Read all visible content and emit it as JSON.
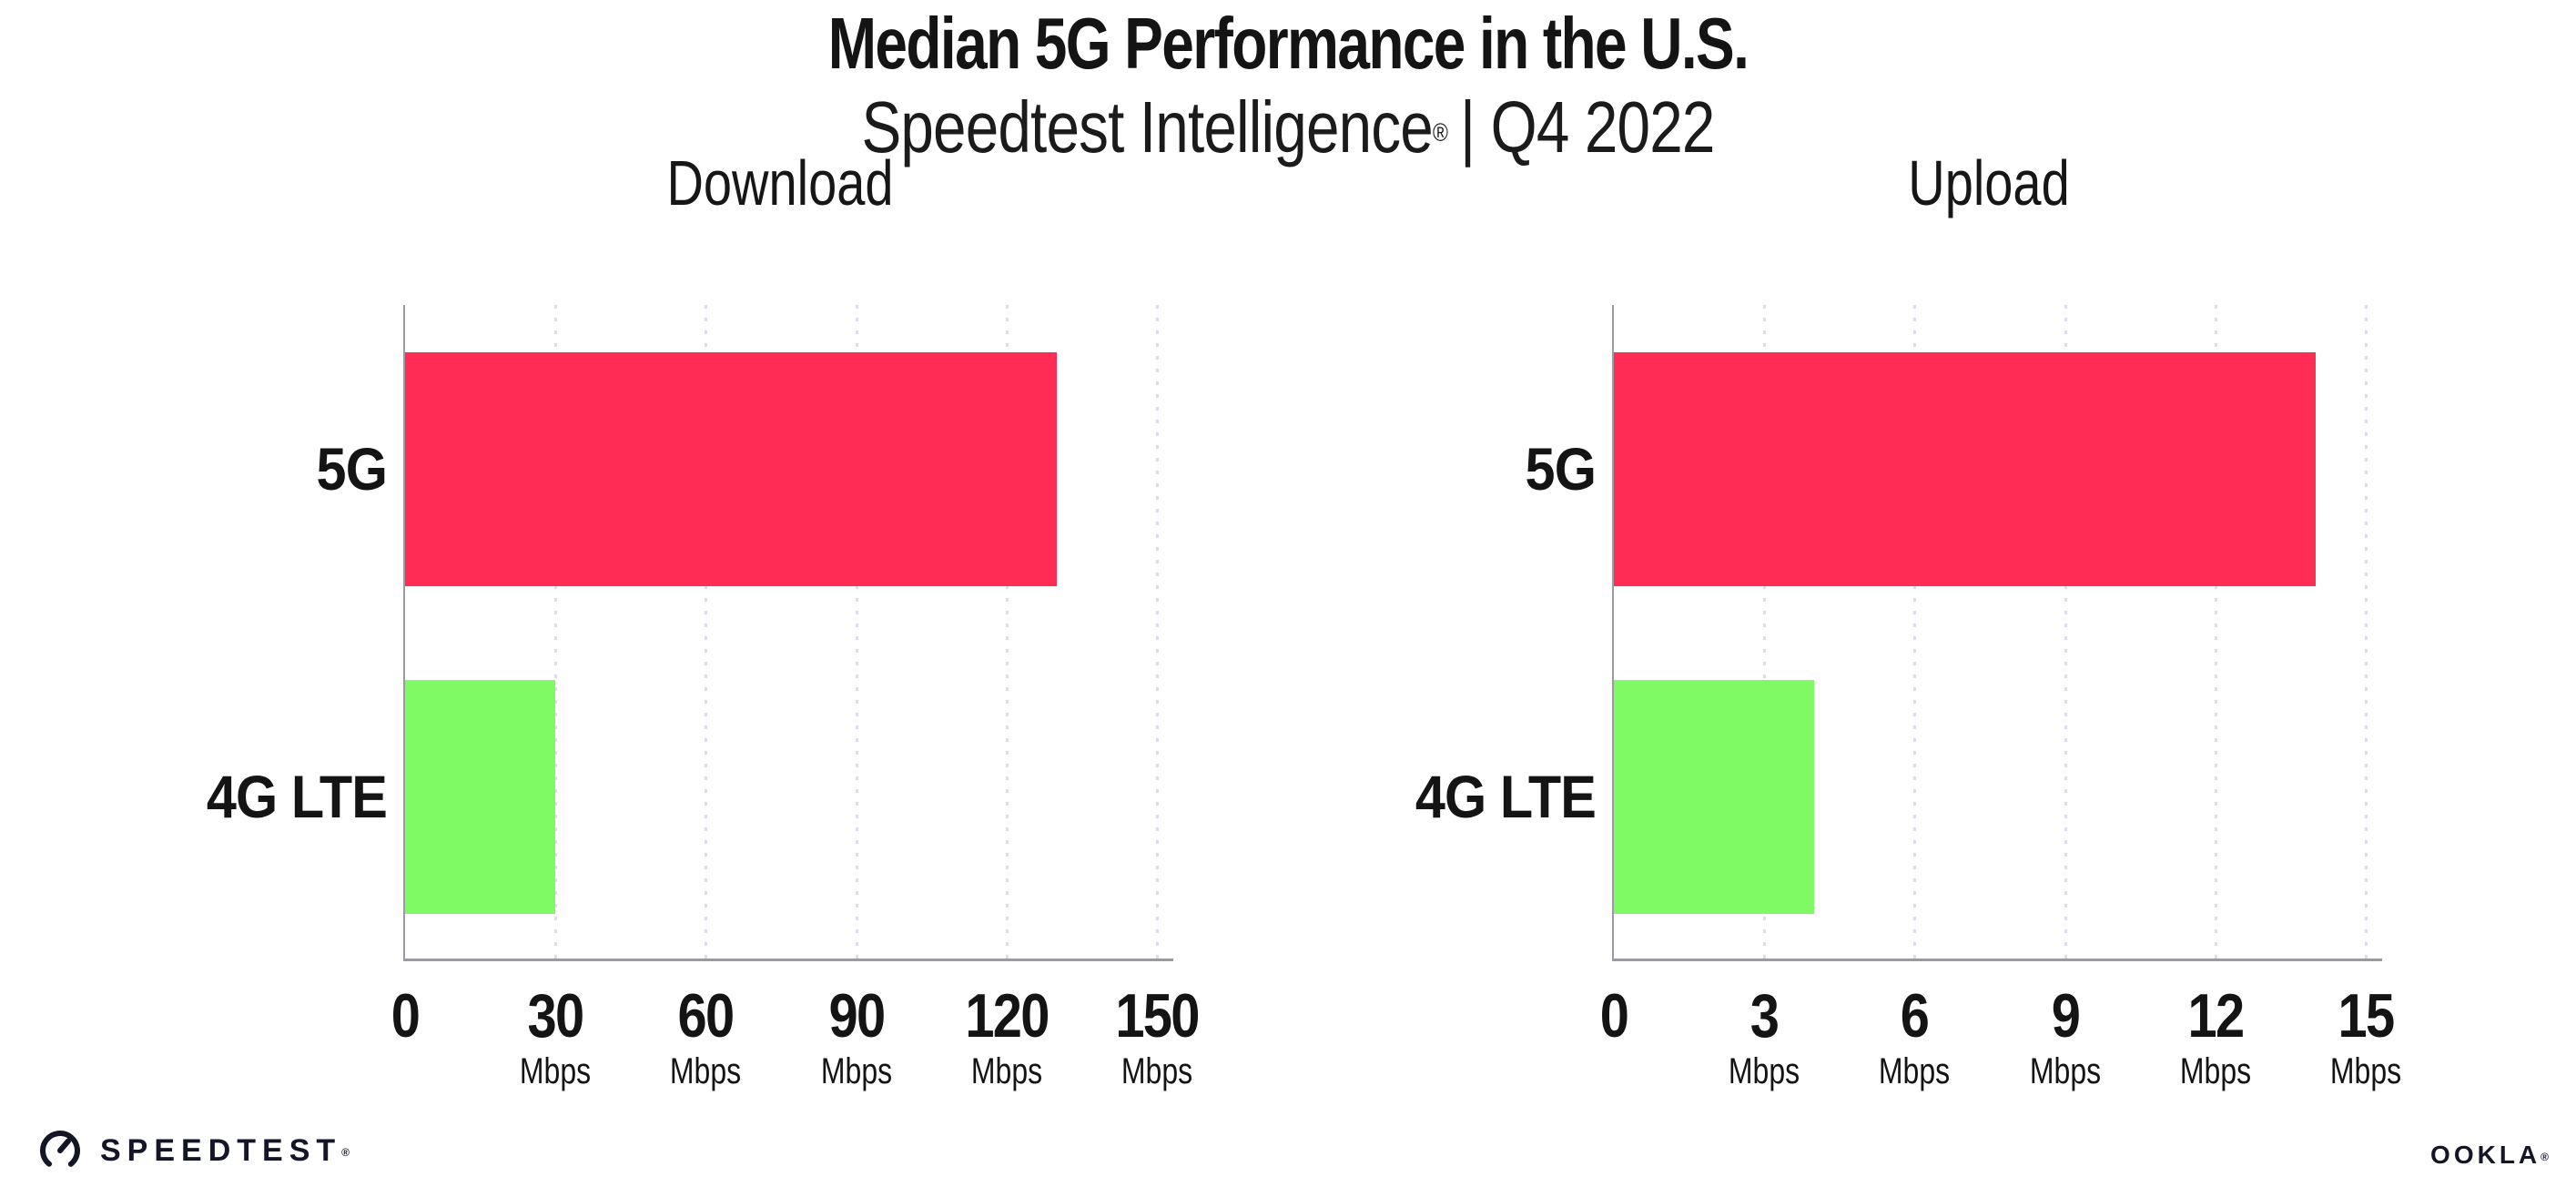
{
  "header": {
    "title": "Median 5G Performance in the U.S.",
    "subtitle_brand": "Speedtest Intelligence",
    "subtitle_reg": "®",
    "subtitle_rest": "| Q4 2022"
  },
  "chart_data": [
    {
      "type": "bar",
      "orientation": "horizontal",
      "title": "Download",
      "unit": "Mbps",
      "categories": [
        "5G",
        "4G LTE"
      ],
      "values": [
        130,
        30
      ],
      "xlim": [
        0,
        150
      ],
      "ticks": [
        0,
        30,
        60,
        90,
        120,
        150
      ],
      "bar_colors": [
        "#FF2D55",
        "#7FFA64"
      ],
      "grid": "vertical-dotted",
      "legend": "none"
    },
    {
      "type": "bar",
      "orientation": "horizontal",
      "title": "Upload",
      "unit": "Mbps",
      "categories": [
        "5G",
        "4G LTE"
      ],
      "values": [
        14,
        4
      ],
      "xlim": [
        0,
        15
      ],
      "ticks": [
        0,
        3,
        6,
        9,
        12,
        15
      ],
      "bar_colors": [
        "#FF2D55",
        "#7FFA64"
      ],
      "grid": "vertical-dotted",
      "legend": "none"
    }
  ],
  "footer": {
    "speedtest_wordmark": "SPEEDTEST",
    "speedtest_reg": "®",
    "ookla_wordmark": "OOKLA",
    "ookla_reg": "®"
  },
  "colors": {
    "bar_5g": "#FF2D55",
    "bar_4g_lte": "#7FFA64",
    "axis": "#9B9BA4",
    "gridline": "#DBDCE8",
    "text": "#141414"
  }
}
